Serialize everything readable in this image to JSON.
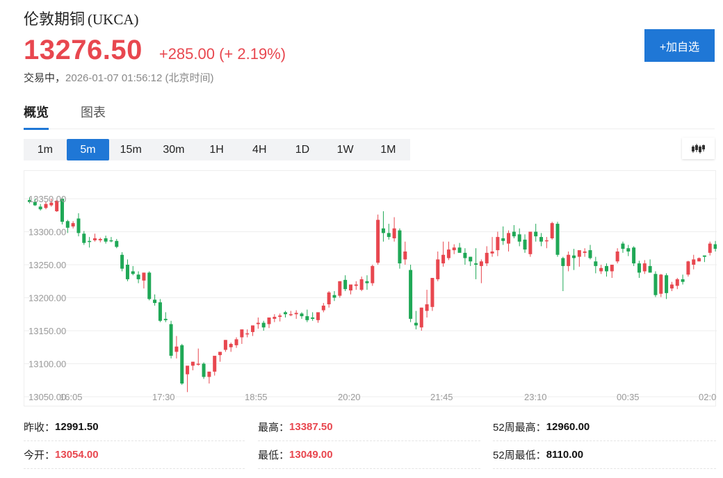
{
  "header": {
    "name": "伦敦期铜",
    "code": "(UKCA)",
    "price": "13276.50",
    "change": "+285.00 (+ 2.19%)",
    "status_label": "交易中，",
    "timestamp": "2026-01-07 01:56:12",
    "timezone": "(北京时间)",
    "add_watchlist_label": "+加自选"
  },
  "tabs": [
    {
      "label": "概览",
      "active": true
    },
    {
      "label": "图表",
      "active": false
    }
  ],
  "periods": [
    {
      "label": "1m",
      "active": false
    },
    {
      "label": "5m",
      "active": true
    },
    {
      "label": "15m",
      "active": false
    },
    {
      "label": "30m",
      "active": false
    },
    {
      "label": "1H",
      "active": false
    },
    {
      "label": "4H",
      "active": false
    },
    {
      "label": "1D",
      "active": false
    },
    {
      "label": "1W",
      "active": false
    },
    {
      "label": "1M",
      "active": false
    }
  ],
  "chart_type_icon": "candlestick-icon",
  "colors": {
    "accent": "#1f77d6",
    "up": "#e8474f",
    "down": "#1fa856",
    "grid": "#eeeeee",
    "axis_text": "#999999"
  },
  "stats": [
    {
      "label": "昨收：",
      "value": "12991.50",
      "tone": "neutral"
    },
    {
      "label": "最高：",
      "value": "13387.50",
      "tone": "up"
    },
    {
      "label": "52周最高：",
      "value": "12960.00",
      "tone": "neutral"
    },
    {
      "label": "今开：",
      "value": "13054.00",
      "tone": "up"
    },
    {
      "label": "最低：",
      "value": "13049.00",
      "tone": "up"
    },
    {
      "label": "52周最低：",
      "value": "8110.00",
      "tone": "neutral"
    }
  ],
  "chart_data": {
    "type": "candlestick",
    "title": "",
    "interval": "5m",
    "xlabel": "",
    "ylabel": "",
    "y_ticks": [
      "13350.00",
      "13300.00",
      "13250.00",
      "13200.00",
      "13150.00",
      "13100.00",
      "13050.00"
    ],
    "x_ticks": [
      "16:05",
      "17:30",
      "18:55",
      "20:20",
      "21:45",
      "23:10",
      "00:35",
      "02:0"
    ],
    "ylim": [
      13050,
      13350
    ],
    "grid": true,
    "legend": false,
    "color_convention": "red = up, green = down",
    "candles": [
      [
        13348,
        13352,
        13343,
        13345
      ],
      [
        13345,
        13350,
        13339,
        13340
      ],
      [
        13338,
        13342,
        13332,
        13334
      ],
      [
        13336,
        13346,
        13334,
        13342
      ],
      [
        13340,
        13350,
        13338,
        13344
      ],
      [
        13331,
        13348,
        13330,
        13347
      ],
      [
        13350,
        13353,
        13311,
        13315
      ],
      [
        13316,
        13318,
        13298,
        13306
      ],
      [
        13308,
        13316,
        13305,
        13313
      ],
      [
        13320,
        13328,
        13293,
        13298
      ],
      [
        13297,
        13301,
        13280,
        13283
      ],
      [
        13286,
        13292,
        13276,
        13285
      ],
      [
        13287,
        13297,
        13285,
        13290
      ],
      [
        13287,
        13291,
        13284,
        13289
      ],
      [
        13290,
        13294,
        13282,
        13285
      ],
      [
        13287,
        13292,
        13284,
        13286
      ],
      [
        13286,
        13289,
        13275,
        13277
      ],
      [
        13265,
        13269,
        13240,
        13244
      ],
      [
        13250,
        13258,
        13225,
        13228
      ],
      [
        13240,
        13248,
        13234,
        13236
      ],
      [
        13235,
        13240,
        13222,
        13228
      ],
      [
        13226,
        13238,
        13214,
        13238
      ],
      [
        13238,
        13240,
        13196,
        13198
      ],
      [
        13197,
        13205,
        13188,
        13192
      ],
      [
        13193,
        13198,
        13163,
        13165
      ],
      [
        13168,
        13178,
        13163,
        13166
      ],
      [
        13160,
        13165,
        13108,
        13112
      ],
      [
        13118,
        13142,
        13108,
        13126
      ],
      [
        13128,
        13130,
        13068,
        13070
      ],
      [
        13084,
        13090,
        13057,
        13097
      ],
      [
        13097,
        13103,
        13090,
        13103
      ],
      [
        13099,
        13123,
        13097,
        13100
      ],
      [
        13100,
        13102,
        13077,
        13080
      ],
      [
        13080,
        13088,
        13070,
        13088
      ],
      [
        13088,
        13110,
        13082,
        13112
      ],
      [
        13113,
        13118,
        13103,
        13118
      ],
      [
        13121,
        13136,
        13118,
        13136
      ],
      [
        13125,
        13132,
        13118,
        13130
      ],
      [
        13128,
        13140,
        13124,
        13137
      ],
      [
        13140,
        13145,
        13130,
        13152
      ],
      [
        13146,
        13152,
        13140,
        13146
      ],
      [
        13148,
        13158,
        13142,
        13158
      ],
      [
        13160,
        13170,
        13153,
        13162
      ],
      [
        13162,
        13165,
        13150,
        13155
      ],
      [
        13160,
        13170,
        13154,
        13170
      ],
      [
        13168,
        13175,
        13163,
        13171
      ],
      [
        13171,
        13176,
        13164,
        13173
      ],
      [
        13178,
        13180,
        13170,
        13175
      ],
      [
        13174,
        13180,
        13172,
        13175
      ],
      [
        13175,
        13181,
        13168,
        13177
      ],
      [
        13176,
        13178,
        13168,
        13172
      ],
      [
        13172,
        13182,
        13163,
        13166
      ],
      [
        13170,
        13178,
        13165,
        13168
      ],
      [
        13166,
        13172,
        13162,
        13178
      ],
      [
        13181,
        13192,
        13178,
        13188
      ],
      [
        13190,
        13210,
        13185,
        13208
      ],
      [
        13204,
        13210,
        13195,
        13200
      ],
      [
        13203,
        13225,
        13200,
        13225
      ],
      [
        13227,
        13234,
        13210,
        13213
      ],
      [
        13211,
        13218,
        13205,
        13220
      ],
      [
        13218,
        13225,
        13212,
        13220
      ],
      [
        13212,
        13232,
        13210,
        13228
      ],
      [
        13225,
        13234,
        13212,
        13222
      ],
      [
        13222,
        13250,
        13218,
        13248
      ],
      [
        13253,
        13326,
        13250,
        13318
      ],
      [
        13305,
        13331,
        13285,
        13298
      ],
      [
        13298,
        13312,
        13288,
        13292
      ],
      [
        13290,
        13322,
        13285,
        13305
      ],
      [
        13302,
        13305,
        13244,
        13252
      ],
      [
        13258,
        13285,
        13250,
        13270
      ],
      [
        13242,
        13250,
        13163,
        13168
      ],
      [
        13162,
        13180,
        13152,
        13158
      ],
      [
        13155,
        13185,
        13150,
        13185
      ],
      [
        13180,
        13212,
        13170,
        13190
      ],
      [
        13186,
        13217,
        13180,
        13230
      ],
      [
        13228,
        13270,
        13225,
        13258
      ],
      [
        13252,
        13285,
        13247,
        13265
      ],
      [
        13260,
        13285,
        13257,
        13273
      ],
      [
        13272,
        13281,
        13266,
        13276
      ],
      [
        13276,
        13283,
        13270,
        13268
      ],
      [
        13268,
        13275,
        13250,
        13260
      ],
      [
        13262,
        13262,
        13248,
        13255
      ],
      [
        13252,
        13275,
        13228,
        13250
      ],
      [
        13248,
        13258,
        13222,
        13255
      ],
      [
        13252,
        13278,
        13248,
        13268
      ],
      [
        13267,
        13292,
        13262,
        13270
      ],
      [
        13272,
        13300,
        13263,
        13292
      ],
      [
        13290,
        13308,
        13280,
        13286
      ],
      [
        13282,
        13302,
        13270,
        13298
      ],
      [
        13300,
        13310,
        13290,
        13293
      ],
      [
        13296,
        13305,
        13278,
        13285
      ],
      [
        13288,
        13296,
        13268,
        13273
      ],
      [
        13266,
        13298,
        13262,
        13300
      ],
      [
        13300,
        13312,
        13285,
        13293
      ],
      [
        13292,
        13298,
        13278,
        13285
      ],
      [
        13287,
        13292,
        13275,
        13287
      ],
      [
        13290,
        13315,
        13288,
        13313
      ],
      [
        13312,
        13315,
        13262,
        13265
      ],
      [
        13260,
        13262,
        13210,
        13248
      ],
      [
        13248,
        13270,
        13240,
        13265
      ],
      [
        13264,
        13274,
        13242,
        13260
      ],
      [
        13262,
        13270,
        13247,
        13272
      ],
      [
        13268,
        13275,
        13262,
        13270
      ],
      [
        13272,
        13280,
        13258,
        13260
      ],
      [
        13255,
        13262,
        13237,
        13248
      ],
      [
        13240,
        13250,
        13236,
        13245
      ],
      [
        13248,
        13252,
        13232,
        13240
      ],
      [
        13240,
        13245,
        13230,
        13250
      ],
      [
        13255,
        13275,
        13252,
        13270
      ],
      [
        13282,
        13285,
        13268,
        13274
      ],
      [
        13275,
        13280,
        13263,
        13270
      ],
      [
        13276,
        13278,
        13248,
        13252
      ],
      [
        13252,
        13256,
        13230,
        13238
      ],
      [
        13240,
        13257,
        13236,
        13252
      ],
      [
        13248,
        13258,
        13238,
        13238
      ],
      [
        13236,
        13240,
        13201,
        13204
      ],
      [
        13206,
        13236,
        13201,
        13235
      ],
      [
        13234,
        13237,
        13198,
        13207
      ],
      [
        13214,
        13224,
        13210,
        13220
      ],
      [
        13218,
        13230,
        13213,
        13228
      ],
      [
        13228,
        13235,
        13220,
        13224
      ],
      [
        13235,
        13256,
        13232,
        13255
      ],
      [
        13250,
        13265,
        13243,
        13258
      ],
      [
        13255,
        13261,
        13255,
        13260
      ],
      [
        13264,
        13264,
        13254,
        13262
      ],
      [
        13268,
        13285,
        13264,
        13282
      ],
      [
        13281,
        13286,
        13270,
        13274
      ],
      [
        13275,
        13283,
        13265,
        13268
      ]
    ]
  }
}
